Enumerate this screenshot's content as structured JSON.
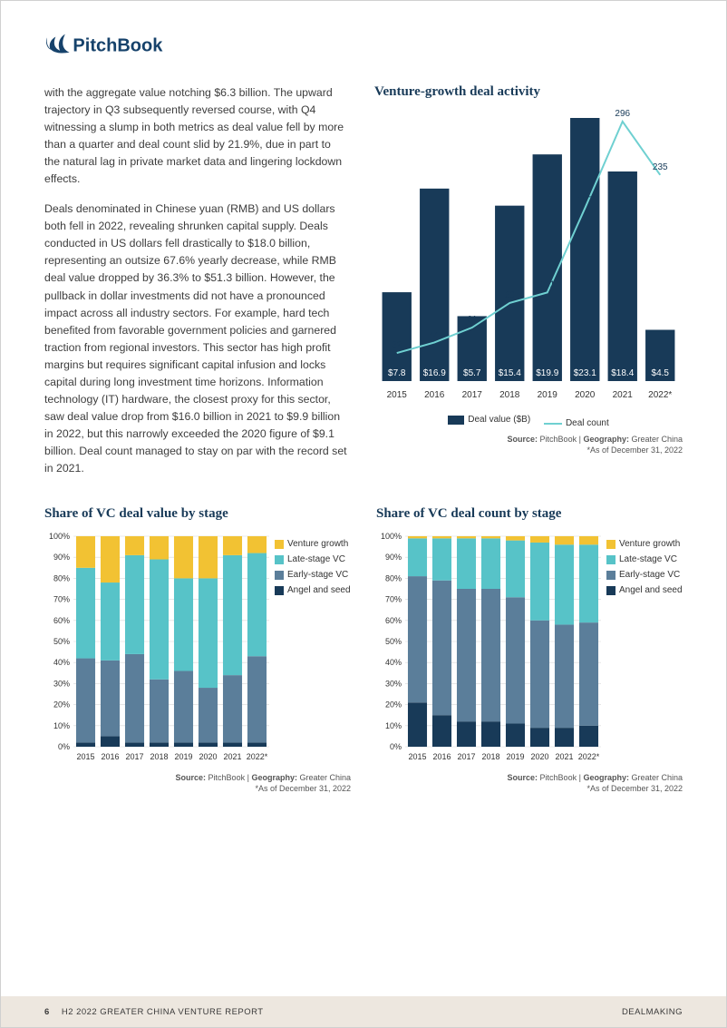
{
  "brand": {
    "name": "PitchBook",
    "color": "#16426b"
  },
  "paragraphs": [
    "with the aggregate value notching $6.3 billion. The upward trajectory in Q3 subsequently reversed course, with Q4 witnessing a slump in both metrics as deal value fell by more than a quarter and deal count slid by 21.9%, due in part to the natural lag in private market data and lingering lockdown effects.",
    "Deals denominated in Chinese yuan (RMB) and US dollars both fell in 2022, revealing shrunken capital supply. Deals conducted in US dollars fell drastically to $18.0 billion, representing an outsize 67.6% yearly decrease, while RMB deal value dropped by 36.3% to $51.3 billion. However, the pullback in dollar investments did not have a pronounced impact across all industry sectors. For example, hard tech benefited from favorable government policies and garnered traction from regional investors. This sector has high profit margins but requires significant capital infusion and locks capital during long investment time horizons. Information technology (IT) hardware, the closest proxy for this sector, saw deal value drop from $16.0 billion in 2021 to $9.9 billion in 2022, but this narrowly exceeded the 2020 figure of $9.1 billion. Deal count managed to stay on par with the record set in 2021."
  ],
  "venture_chart": {
    "title": "Venture-growth deal activity",
    "categories": [
      "2015",
      "2016",
      "2017",
      "2018",
      "2019",
      "2020",
      "2021",
      "2022*"
    ],
    "deal_value": [
      7.8,
      16.9,
      5.7,
      15.4,
      19.9,
      23.1,
      18.4,
      4.5
    ],
    "deal_value_labels": [
      "$7.8",
      "$16.9",
      "$5.7",
      "$15.4",
      "$19.9",
      "$23.1",
      "$18.4",
      "$4.5"
    ],
    "deal_count": [
      32,
      44,
      61,
      89,
      101,
      197,
      296,
      235
    ],
    "bar_color": "#183a58",
    "line_color": "#6fd0d1",
    "value_label_bg": "#ffffff",
    "value_label_color": "#ffffff",
    "count_label_color": "#183a58",
    "legend": {
      "value": "Deal value ($B)",
      "count": "Deal count"
    },
    "y_max_value": 23.1,
    "y_max_count": 300
  },
  "share_value_chart": {
    "title": "Share of VC deal value by stage",
    "categories": [
      "2015",
      "2016",
      "2017",
      "2018",
      "2019",
      "2020",
      "2021",
      "2022*"
    ],
    "series": {
      "angel": [
        2,
        5,
        2,
        2,
        2,
        2,
        2,
        2
      ],
      "early": [
        40,
        36,
        42,
        30,
        34,
        26,
        32,
        41
      ],
      "late": [
        43,
        37,
        47,
        57,
        44,
        52,
        57,
        49
      ],
      "growth": [
        15,
        22,
        9,
        11,
        20,
        20,
        9,
        8
      ]
    },
    "colors": {
      "angel": "#183a58",
      "early": "#5b7e9a",
      "late": "#57c3c8",
      "growth": "#f2c233"
    },
    "legend": [
      "Venture growth",
      "Late-stage VC",
      "Early-stage VC",
      "Angel and seed"
    ],
    "y_ticks": [
      "0%",
      "10%",
      "20%",
      "30%",
      "40%",
      "50%",
      "60%",
      "70%",
      "80%",
      "90%",
      "100%"
    ]
  },
  "share_count_chart": {
    "title": "Share of VC deal count by stage",
    "categories": [
      "2015",
      "2016",
      "2017",
      "2018",
      "2019",
      "2020",
      "2021",
      "2022*"
    ],
    "series": {
      "angel": [
        21,
        15,
        12,
        12,
        11,
        9,
        9,
        10
      ],
      "early": [
        60,
        64,
        63,
        63,
        60,
        51,
        49,
        49
      ],
      "late": [
        18,
        20,
        24,
        24,
        27,
        37,
        38,
        37
      ],
      "growth": [
        1,
        1,
        1,
        1,
        2,
        3,
        4,
        4
      ]
    },
    "colors": {
      "angel": "#183a58",
      "early": "#5b7e9a",
      "late": "#57c3c8",
      "growth": "#f2c233"
    },
    "legend": [
      "Venture growth",
      "Late-stage VC",
      "Early-stage VC",
      "Angel and seed"
    ],
    "y_ticks": [
      "0%",
      "10%",
      "20%",
      "30%",
      "40%",
      "50%",
      "60%",
      "70%",
      "80%",
      "90%",
      "100%"
    ]
  },
  "source": {
    "label_source": "Source:",
    "source": "PitchBook",
    "sep": " | ",
    "label_geo": "Geography:",
    "geo": "Greater China",
    "note": "*As of December 31, 2022"
  },
  "footer": {
    "page": "6",
    "title": "H2 2022 GREATER CHINA VENTURE REPORT",
    "section": "DEALMAKING"
  }
}
